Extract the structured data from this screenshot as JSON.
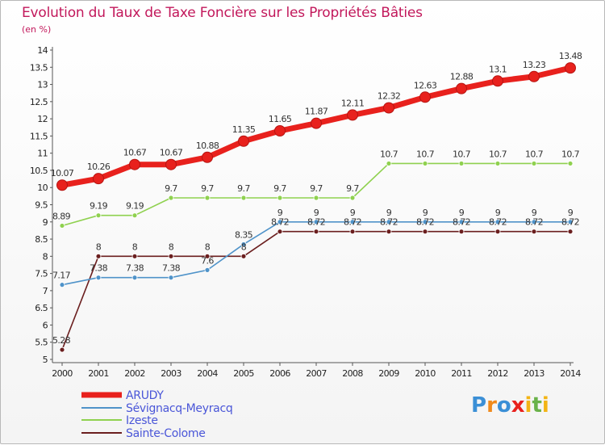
{
  "chart_data": {
    "type": "line",
    "title": "Evolution du Taux de Taxe Foncière sur les Propriétés Bâties",
    "ylabel": "(en %)",
    "xlabel": "",
    "ylim": [
      5,
      14
    ],
    "yticks": [
      "5",
      "5.5",
      "6",
      "6.5",
      "7",
      "7.5",
      "8",
      "8.5",
      "9",
      "9.5",
      "10",
      "10.5",
      "11",
      "11.5",
      "12",
      "12.5",
      "13",
      "13.5",
      "14"
    ],
    "categories": [
      "2000",
      "2001",
      "2002",
      "2003",
      "2004",
      "2005",
      "2006",
      "2007",
      "2008",
      "2009",
      "2010",
      "2011",
      "2012",
      "2013",
      "2014"
    ],
    "grid": false,
    "legend_position": "bottom-left",
    "series": [
      {
        "name": "ARUDY",
        "color": "#e8211d",
        "values": [
          10.07,
          10.26,
          10.67,
          10.67,
          10.88,
          11.35,
          11.65,
          11.87,
          12.11,
          12.32,
          12.63,
          12.88,
          13.1,
          13.23,
          13.48
        ],
        "labels": [
          "10.07",
          "10.26",
          "10.67",
          "10.67",
          "10.88",
          "11.35",
          "11.65",
          "11.87",
          "12.11",
          "12.32",
          "12.63",
          "12.88",
          "13.1",
          "13.23",
          "13.48"
        ]
      },
      {
        "name": "Sévignacq-Meyracq",
        "color": "#4f93c9",
        "values": [
          7.17,
          7.38,
          7.38,
          7.38,
          7.6,
          8.35,
          9,
          9,
          9,
          9,
          9,
          9,
          9,
          9,
          9
        ],
        "labels": [
          "7.17",
          "7.38",
          "7.38",
          "7.38",
          "7.6",
          "8.35",
          "9",
          "9",
          "9",
          "9",
          "9",
          "9",
          "9",
          "9",
          "9"
        ]
      },
      {
        "name": "Izeste",
        "color": "#8fd14f",
        "values": [
          8.89,
          9.19,
          9.19,
          9.7,
          9.7,
          9.7,
          9.7,
          9.7,
          9.7,
          10.7,
          10.7,
          10.7,
          10.7,
          10.7,
          10.7
        ],
        "labels": [
          "8.89",
          "9.19",
          "9.19",
          "9.7",
          "9.7",
          "9.7",
          "9.7",
          "9.7",
          "9.7",
          "10.7",
          "10.7",
          "10.7",
          "10.7",
          "10.7",
          "10.7"
        ]
      },
      {
        "name": "Sainte-Colome",
        "color": "#6b1f1f",
        "values": [
          5.28,
          8,
          8,
          8,
          8,
          8,
          8.72,
          8.72,
          8.72,
          8.72,
          8.72,
          8.72,
          8.72,
          8.72,
          8.72
        ],
        "labels": [
          "5.28",
          "8",
          "8",
          "8",
          "8",
          "8",
          "8.72",
          "8.72",
          "8.72",
          "8.72",
          "8.72",
          "8.72",
          "8.72",
          "8.72",
          "8.72"
        ]
      }
    ]
  },
  "legend_text_color": "#4a56d8",
  "logo": {
    "letters": [
      "P",
      "r",
      "o",
      "x",
      "i",
      "t",
      "i"
    ]
  }
}
